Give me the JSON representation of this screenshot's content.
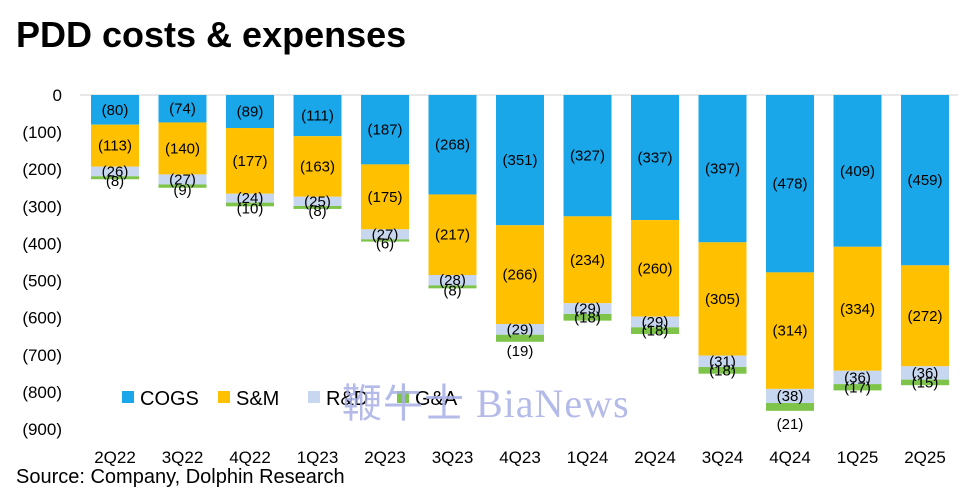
{
  "title": "PDD costs & expenses",
  "source": "Source: Company,  Dolphin Research",
  "watermark": "鞭牛士 BiaNews",
  "chart_data": {
    "type": "bar",
    "stacked": true,
    "categories": [
      "2Q22",
      "3Q22",
      "4Q22",
      "1Q23",
      "2Q23",
      "3Q23",
      "4Q23",
      "1Q24",
      "2Q24",
      "3Q24",
      "4Q24",
      "1Q25",
      "2Q25"
    ],
    "ylim": [
      -900,
      0
    ],
    "yticks": [
      0,
      -100,
      -200,
      -300,
      -400,
      -500,
      -600,
      -700,
      -800,
      -900
    ],
    "ytick_labels": [
      "0",
      "(100)",
      "(200)",
      "(300)",
      "(400)",
      "(500)",
      "(600)",
      "(700)",
      "(800)",
      "(900)"
    ],
    "legend_position": "bottom-left",
    "series": [
      {
        "name": "COGS",
        "color": "#1aa7ea",
        "values": [
          -80,
          -74,
          -89,
          -111,
          -187,
          -268,
          -351,
          -327,
          -337,
          -397,
          -478,
          -409,
          -459
        ],
        "labels": [
          "(80)",
          "(74)",
          "(89)",
          "(111)",
          "(187)",
          "(268)",
          "(351)",
          "(327)",
          "(337)",
          "(397)",
          "(478)",
          "(409)",
          "(459)"
        ]
      },
      {
        "name": "S&M",
        "color": "#ffc000",
        "values": [
          -113,
          -140,
          -177,
          -163,
          -175,
          -217,
          -266,
          -234,
          -260,
          -305,
          -314,
          -334,
          -272
        ],
        "labels": [
          "(113)",
          "(140)",
          "(177)",
          "(163)",
          "(175)",
          "(217)",
          "(266)",
          "(234)",
          "(260)",
          "(305)",
          "(314)",
          "(334)",
          "(272)"
        ]
      },
      {
        "name": "R&D",
        "color": "#c7d7ef",
        "values": [
          -26,
          -27,
          -24,
          -25,
          -27,
          -28,
          -29,
          -29,
          -29,
          -31,
          -38,
          -36,
          -36
        ],
        "labels": [
          "(26)",
          "(27)",
          "(24)",
          "(25)",
          "(27)",
          "(28)",
          "(29)",
          "(29)",
          "(29)",
          "(31)",
          "(38)",
          "(36)",
          "(36)"
        ]
      },
      {
        "name": "G&A",
        "color": "#7ec44a",
        "values": [
          -8,
          -9,
          -10,
          -8,
          -6,
          -8,
          -19,
          -18,
          -18,
          -18,
          -21,
          -17,
          -15
        ],
        "labels": [
          "(8)",
          "(9)",
          "(10)",
          "(8)",
          "(6)",
          "(8)",
          "(19)",
          "(18)",
          "(18)",
          "(18)",
          "(21)",
          "(17)",
          "(15)"
        ]
      }
    ]
  }
}
